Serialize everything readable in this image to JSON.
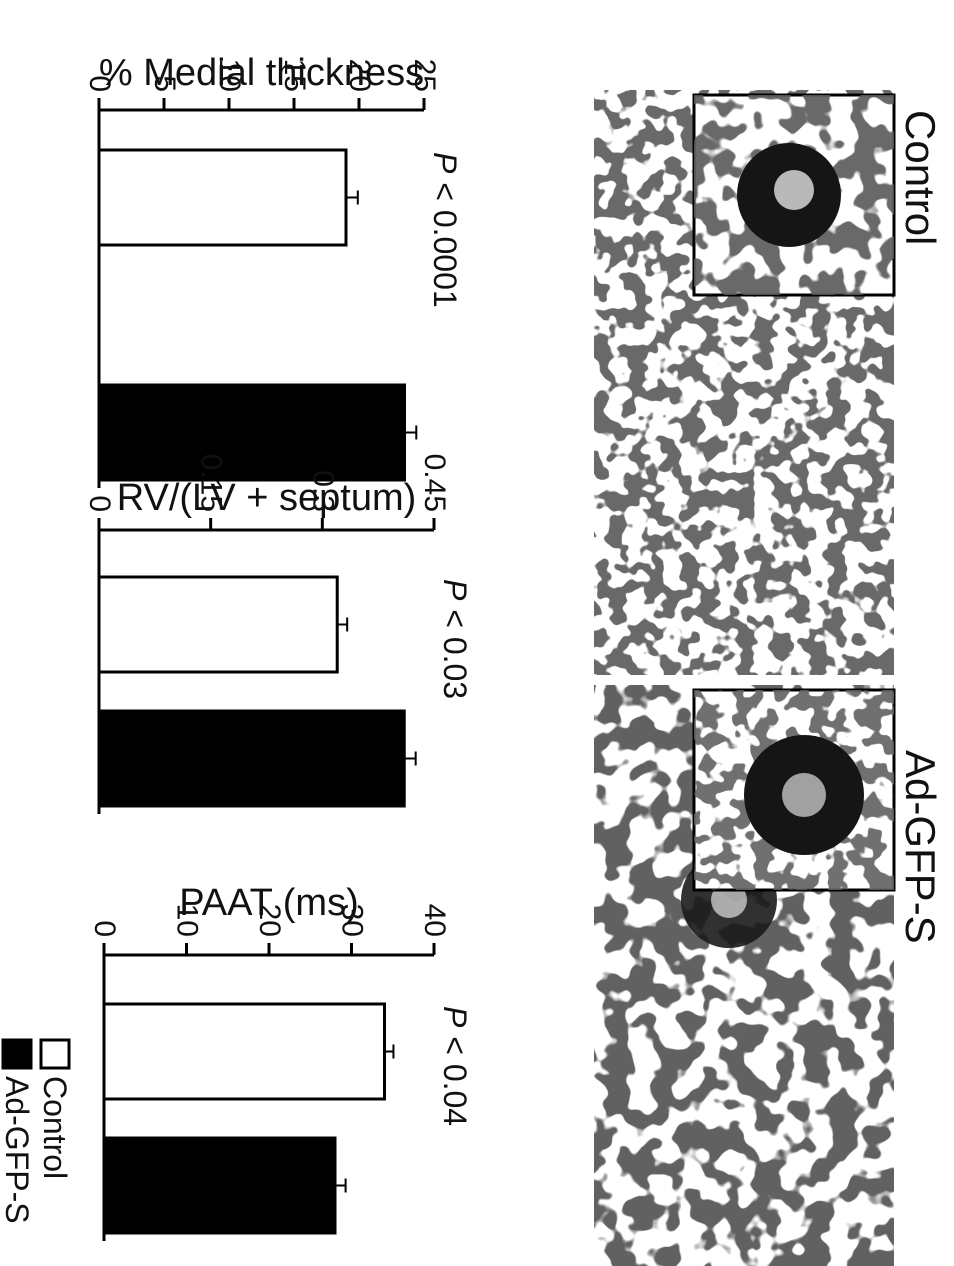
{
  "figure": {
    "panels": [
      {
        "label": "Control",
        "tissue": "sparse"
      },
      {
        "label": "Ad-GFP-S",
        "tissue": "dense"
      }
    ],
    "legend": {
      "items": [
        {
          "label": "Control",
          "color": "#ffffff"
        },
        {
          "label": "Ad-GFP-S",
          "color": "#000000"
        }
      ]
    }
  },
  "chart_data": [
    {
      "type": "bar",
      "ylabel": "% Medial thickness",
      "ylim": [
        0,
        25
      ],
      "ticks": [
        "0",
        "5",
        "10",
        "15",
        "20",
        "25"
      ],
      "tick_values": [
        0,
        5,
        10,
        15,
        20,
        25
      ],
      "categories": [
        "Control",
        "Ad-GFP-S"
      ],
      "values": [
        19,
        23.5
      ],
      "errors": [
        0.6,
        0.6
      ],
      "colors": [
        "#ffffff",
        "#000000"
      ],
      "annotation": {
        "italic": "P",
        "text": " < 0.0001"
      }
    },
    {
      "type": "bar",
      "ylabel": "RV/(LV + septum)",
      "ylim": [
        0,
        0.45
      ],
      "ticks": [
        "0",
        "0.15",
        "0.3",
        "0.45"
      ],
      "tick_values": [
        0,
        0.15,
        0.3,
        0.45
      ],
      "categories": [
        "Control",
        "Ad-GFP-S"
      ],
      "values": [
        0.32,
        0.41
      ],
      "errors": [
        0.008,
        0.01
      ],
      "colors": [
        "#ffffff",
        "#000000"
      ],
      "annotation": {
        "italic": "P",
        "text": " < 0.03"
      }
    },
    {
      "type": "bar",
      "ylabel": "PAAT (ms)",
      "ylim": [
        0,
        40
      ],
      "ticks": [
        "0",
        "10",
        "20",
        "30",
        "40"
      ],
      "tick_values": [
        0,
        10,
        20,
        30,
        40
      ],
      "categories": [
        "Control",
        "Ad-GFP-S"
      ],
      "values": [
        34,
        28
      ],
      "errors": [
        0.6,
        0.8
      ],
      "colors": [
        "#ffffff",
        "#000000"
      ],
      "annotation": {
        "italic": "P",
        "text": " < 0.04"
      }
    }
  ]
}
